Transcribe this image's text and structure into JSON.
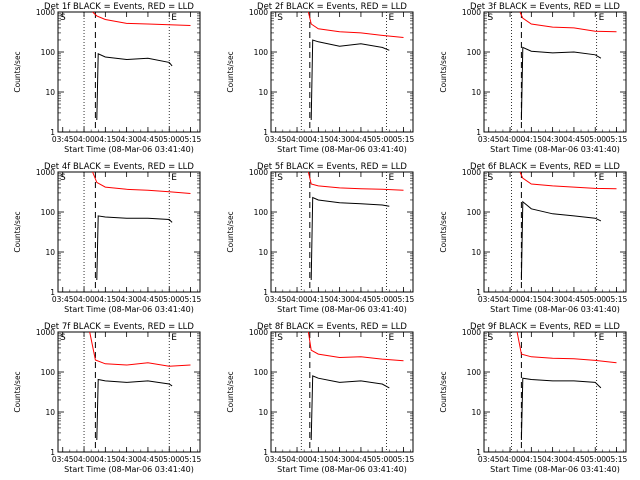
{
  "chart_data": [
    {
      "type": "line",
      "title": "Det 1f BLACK = Events, RED = LLD",
      "xlabel": "Start Time (08-Mar-06 03:41:40)",
      "ylabel": "Counts/sec",
      "yscale": "log",
      "ylim": [
        1,
        1000
      ],
      "xlim_minutes": [
        "03:41:40",
        "05:21:40"
      ],
      "xticks": [
        "03:45",
        "04:00",
        "04:15",
        "04:30",
        "04:45",
        "05:00",
        "05:15"
      ],
      "yticks": [
        "1",
        "10",
        "100",
        "1000"
      ],
      "markers": [
        "S",
        "E"
      ],
      "dotted_lines": [
        "04:00",
        "05:00"
      ],
      "dashed_line": "04:08",
      "series": [
        {
          "color": "#ff0000",
          "x": [
            "04:06",
            "04:09",
            "04:15",
            "04:30",
            "04:45",
            "05:00",
            "05:15"
          ],
          "y": [
            1000,
            800,
            650,
            520,
            500,
            480,
            460
          ]
        },
        {
          "color": "#000000",
          "x": [
            "04:09",
            "04:10",
            "04:15",
            "04:30",
            "04:45",
            "05:00",
            "05:02"
          ],
          "y": [
            2,
            90,
            75,
            65,
            70,
            55,
            45
          ]
        }
      ]
    },
    {
      "type": "line",
      "title": "Det 2f BLACK = Events, RED = LLD",
      "xlabel": "Start Time (08-Mar-06 03:41:40)",
      "ylabel": "Counts/sec",
      "yscale": "log",
      "ylim": [
        1,
        1000
      ],
      "xticks": [
        "03:45",
        "04:00",
        "04:15",
        "04:30",
        "04:45",
        "05:00",
        "05:15"
      ],
      "yticks": [
        "1",
        "10",
        "100",
        "1000"
      ],
      "markers": [
        "S",
        "E"
      ],
      "dotted_lines": [
        "04:03",
        "05:03"
      ],
      "dashed_line": "04:09",
      "series": [
        {
          "color": "#ff0000",
          "x": [
            "04:08",
            "04:10",
            "04:15",
            "04:30",
            "04:45",
            "05:00",
            "05:15"
          ],
          "y": [
            1000,
            500,
            380,
            320,
            300,
            260,
            230
          ]
        },
        {
          "color": "#000000",
          "x": [
            "04:10",
            "04:11",
            "04:15",
            "04:30",
            "04:45",
            "05:00",
            "05:05"
          ],
          "y": [
            2,
            200,
            180,
            140,
            160,
            130,
            110
          ]
        }
      ]
    },
    {
      "type": "line",
      "title": "Det 3f BLACK = Events, RED = LLD",
      "xlabel": "Start Time (08-Mar-06 03:41:40)",
      "ylabel": "Counts/sec",
      "yscale": "log",
      "ylim": [
        1,
        1000
      ],
      "xticks": [
        "03:45",
        "04:00",
        "04:15",
        "04:30",
        "04:45",
        "05:00",
        "05:15"
      ],
      "yticks": [
        "1",
        "10",
        "100",
        "1000"
      ],
      "markers": [
        "S",
        "E"
      ],
      "dotted_lines": [
        "04:01",
        "05:01"
      ],
      "dashed_line": "04:08",
      "series": [
        {
          "color": "#ff0000",
          "x": [
            "04:07",
            "04:09",
            "04:15",
            "04:30",
            "04:45",
            "05:00",
            "05:15"
          ],
          "y": [
            1000,
            700,
            500,
            420,
            400,
            330,
            320
          ]
        },
        {
          "color": "#000000",
          "x": [
            "04:08",
            "04:09",
            "04:15",
            "04:30",
            "04:45",
            "05:00",
            "05:04"
          ],
          "y": [
            2,
            130,
            105,
            95,
            100,
            85,
            70
          ]
        }
      ]
    },
    {
      "type": "line",
      "title": "Det 4f BLACK = Events, RED = LLD",
      "xlabel": "Start Time (08-Mar-06 03:41:40)",
      "ylabel": "Counts/sec",
      "yscale": "log",
      "ylim": [
        1,
        1000
      ],
      "xticks": [
        "03:45",
        "04:00",
        "04:15",
        "04:30",
        "04:45",
        "05:00",
        "05:15"
      ],
      "yticks": [
        "1",
        "10",
        "100",
        "1000"
      ],
      "markers": [
        "S",
        "E"
      ],
      "dotted_lines": [
        "04:00",
        "05:00"
      ],
      "dashed_line": "04:08",
      "series": [
        {
          "color": "#ff0000",
          "x": [
            "04:06",
            "04:09",
            "04:15",
            "04:30",
            "04:45",
            "05:00",
            "05:15"
          ],
          "y": [
            1000,
            550,
            420,
            370,
            350,
            320,
            290
          ]
        },
        {
          "color": "#000000",
          "x": [
            "04:09",
            "04:10",
            "04:15",
            "04:30",
            "04:45",
            "05:00",
            "05:02"
          ],
          "y": [
            2,
            80,
            75,
            70,
            70,
            65,
            55
          ]
        }
      ]
    },
    {
      "type": "line",
      "title": "Det 5f BLACK = Events, RED = LLD",
      "xlabel": "Start Time (08-Mar-06 03:41:40)",
      "ylabel": "Counts/sec",
      "yscale": "log",
      "ylim": [
        1,
        1000
      ],
      "xticks": [
        "03:45",
        "04:00",
        "04:15",
        "04:30",
        "04:45",
        "05:00",
        "05:15"
      ],
      "yticks": [
        "1",
        "10",
        "100",
        "1000"
      ],
      "markers": [
        "S",
        "E"
      ],
      "dotted_lines": [
        "04:03",
        "05:03"
      ],
      "dashed_line": "04:09",
      "series": [
        {
          "color": "#ff0000",
          "x": [
            "04:08",
            "04:10",
            "04:15",
            "04:30",
            "04:45",
            "05:00",
            "05:15"
          ],
          "y": [
            1000,
            500,
            450,
            400,
            380,
            370,
            350
          ]
        },
        {
          "color": "#000000",
          "x": [
            "04:10",
            "04:11",
            "04:15",
            "04:30",
            "04:45",
            "05:00",
            "05:05"
          ],
          "y": [
            2,
            230,
            200,
            170,
            160,
            150,
            140
          ]
        }
      ]
    },
    {
      "type": "line",
      "title": "Det 6f BLACK = Events, RED = LLD",
      "xlabel": "Start Time (08-Mar-06 03:41:40)",
      "ylabel": "Counts/sec",
      "yscale": "log",
      "ylim": [
        1,
        1000
      ],
      "xticks": [
        "03:45",
        "04:00",
        "04:15",
        "04:30",
        "04:45",
        "05:00",
        "05:15"
      ],
      "yticks": [
        "1",
        "10",
        "100",
        "1000"
      ],
      "markers": [
        "S",
        "E"
      ],
      "dotted_lines": [
        "04:01",
        "05:01"
      ],
      "dashed_line": "04:08",
      "series": [
        {
          "color": "#ff0000",
          "x": [
            "04:07",
            "04:09",
            "04:15",
            "04:30",
            "04:45",
            "05:00",
            "05:15"
          ],
          "y": [
            1000,
            700,
            500,
            450,
            420,
            390,
            380
          ]
        },
        {
          "color": "#000000",
          "x": [
            "04:08",
            "04:09",
            "04:15",
            "04:30",
            "04:45",
            "05:00",
            "05:04"
          ],
          "y": [
            2,
            180,
            120,
            90,
            80,
            70,
            60
          ]
        }
      ]
    },
    {
      "type": "line",
      "title": "Det 7f BLACK = Events, RED = LLD",
      "xlabel": "Start Time (08-Mar-06 03:41:40)",
      "ylabel": "Counts/sec",
      "yscale": "log",
      "ylim": [
        1,
        1000
      ],
      "xticks": [
        "03:45",
        "04:00",
        "04:15",
        "04:30",
        "04:45",
        "05:00",
        "05:15"
      ],
      "yticks": [
        "1",
        "10",
        "100",
        "1000"
      ],
      "markers": [
        "S",
        "E"
      ],
      "dotted_lines": [
        "04:00",
        "05:00"
      ],
      "dashed_line": "04:08",
      "series": [
        {
          "color": "#ff0000",
          "x": [
            "04:04",
            "04:08",
            "04:15",
            "04:30",
            "04:45",
            "05:00",
            "05:15"
          ],
          "y": [
            1000,
            200,
            160,
            150,
            170,
            140,
            150
          ]
        },
        {
          "color": "#000000",
          "x": [
            "04:09",
            "04:10",
            "04:15",
            "04:30",
            "04:45",
            "05:00",
            "05:02"
          ],
          "y": [
            2,
            65,
            60,
            55,
            60,
            50,
            45
          ]
        }
      ]
    },
    {
      "type": "line",
      "title": "Det 8f BLACK = Events, RED = LLD",
      "xlabel": "Start Time (08-Mar-06 03:41:40)",
      "ylabel": "Counts/sec",
      "yscale": "log",
      "ylim": [
        1,
        1000
      ],
      "xticks": [
        "03:45",
        "04:00",
        "04:15",
        "04:30",
        "04:45",
        "05:00",
        "05:15"
      ],
      "yticks": [
        "1",
        "10",
        "100",
        "1000"
      ],
      "markers": [
        "S",
        "E"
      ],
      "dotted_lines": [
        "04:03",
        "05:03"
      ],
      "dashed_line": "04:09",
      "series": [
        {
          "color": "#ff0000",
          "x": [
            "04:08",
            "04:10",
            "04:15",
            "04:30",
            "04:45",
            "05:00",
            "05:15"
          ],
          "y": [
            1000,
            350,
            280,
            230,
            240,
            210,
            190
          ]
        },
        {
          "color": "#000000",
          "x": [
            "04:10",
            "04:11",
            "04:15",
            "04:30",
            "04:45",
            "05:00",
            "05:05"
          ],
          "y": [
            2,
            80,
            70,
            55,
            60,
            50,
            40
          ]
        }
      ]
    },
    {
      "type": "line",
      "title": "Det 9f BLACK = Events, RED = LLD",
      "xlabel": "Start Time (08-Mar-06 03:41:40)",
      "ylabel": "Counts/sec",
      "yscale": "log",
      "ylim": [
        1,
        1000
      ],
      "xticks": [
        "03:45",
        "04:00",
        "04:15",
        "04:30",
        "04:45",
        "05:00",
        "05:15"
      ],
      "yticks": [
        "1",
        "10",
        "100",
        "1000"
      ],
      "markers": [
        "S",
        "E"
      ],
      "dotted_lines": [
        "04:01",
        "05:01"
      ],
      "dashed_line": "04:08",
      "series": [
        {
          "color": "#ff0000",
          "x": [
            "04:05",
            "04:08",
            "04:15",
            "04:30",
            "04:45",
            "05:00",
            "05:15"
          ],
          "y": [
            1000,
            280,
            240,
            220,
            215,
            195,
            170
          ]
        },
        {
          "color": "#000000",
          "x": [
            "04:08",
            "04:09",
            "04:15",
            "04:30",
            "04:45",
            "05:00",
            "05:04"
          ],
          "y": [
            2,
            70,
            65,
            60,
            60,
            55,
            40
          ]
        }
      ]
    }
  ]
}
